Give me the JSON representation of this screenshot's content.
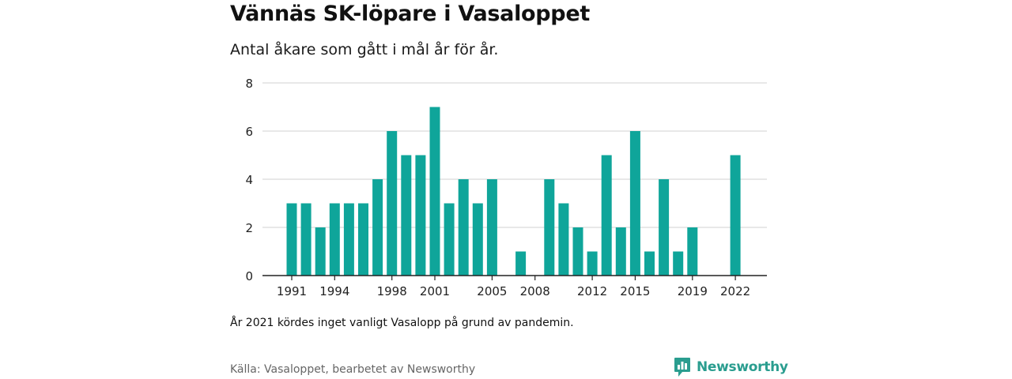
{
  "title": "Vännäs SK-löpare i Vasaloppet",
  "subtitle": "Antal åkare som gått i mål år för år.",
  "note": "År 2021 kördes inget vanligt Vasalopp på grund av pandemin.",
  "source": "Källa: Vasaloppet, bearbetet av Newsworthy",
  "logo": {
    "text": "Newsworthy",
    "icon": "newsworthy-bar-chart-icon"
  },
  "colors": {
    "bar": "#0fa59a",
    "grid": "#d9d9d9",
    "axis": "#222222",
    "brand": "#2a9d8f"
  },
  "chart_data": {
    "type": "bar",
    "x": [
      1991,
      1992,
      1993,
      1994,
      1995,
      1996,
      1997,
      1998,
      1999,
      2000,
      2001,
      2002,
      2003,
      2004,
      2005,
      2006,
      2007,
      2008,
      2009,
      2010,
      2011,
      2012,
      2013,
      2014,
      2015,
      2016,
      2017,
      2018,
      2019,
      2020,
      2021,
      2022
    ],
    "values": [
      3,
      3,
      2,
      3,
      3,
      3,
      4,
      6,
      5,
      5,
      7,
      3,
      4,
      3,
      4,
      0,
      1,
      0,
      4,
      3,
      2,
      1,
      5,
      2,
      6,
      1,
      4,
      1,
      2,
      0,
      0,
      5
    ],
    "x_tick_labels": [
      "1991",
      "1994",
      "1998",
      "2001",
      "2005",
      "2008",
      "2012",
      "2015",
      "2019",
      "2022"
    ],
    "y_ticks": [
      0,
      2,
      4,
      6,
      8
    ],
    "ylim": [
      0,
      8
    ],
    "title": "Vännäs SK-löpare i Vasaloppet",
    "xlabel": "",
    "ylabel": "",
    "grid": true
  }
}
